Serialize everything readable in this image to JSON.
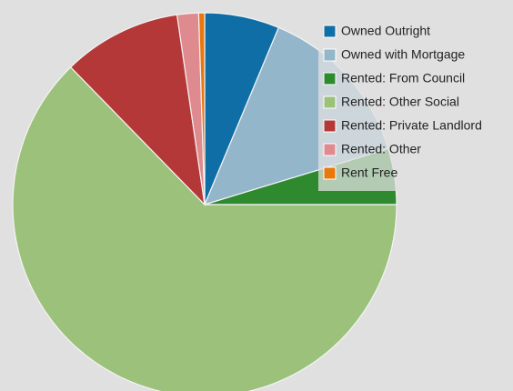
{
  "chart_data": {
    "type": "pie",
    "categories": [
      "Owned Outright",
      "Owned with Mortgage",
      "Rented: From Council",
      "Rented: Other Social",
      "Rented: Private Landlord",
      "Rented: Other",
      "Rent Free"
    ],
    "values": [
      6.3,
      14,
      4.7,
      62.7,
      10,
      1.8,
      0.5
    ],
    "colors": [
      "#0f6ea6",
      "#93b6cb",
      "#2f8a2f",
      "#9bc17a",
      "#b53838",
      "#de8a8e",
      "#e8780c"
    ],
    "legend": "upper right"
  }
}
